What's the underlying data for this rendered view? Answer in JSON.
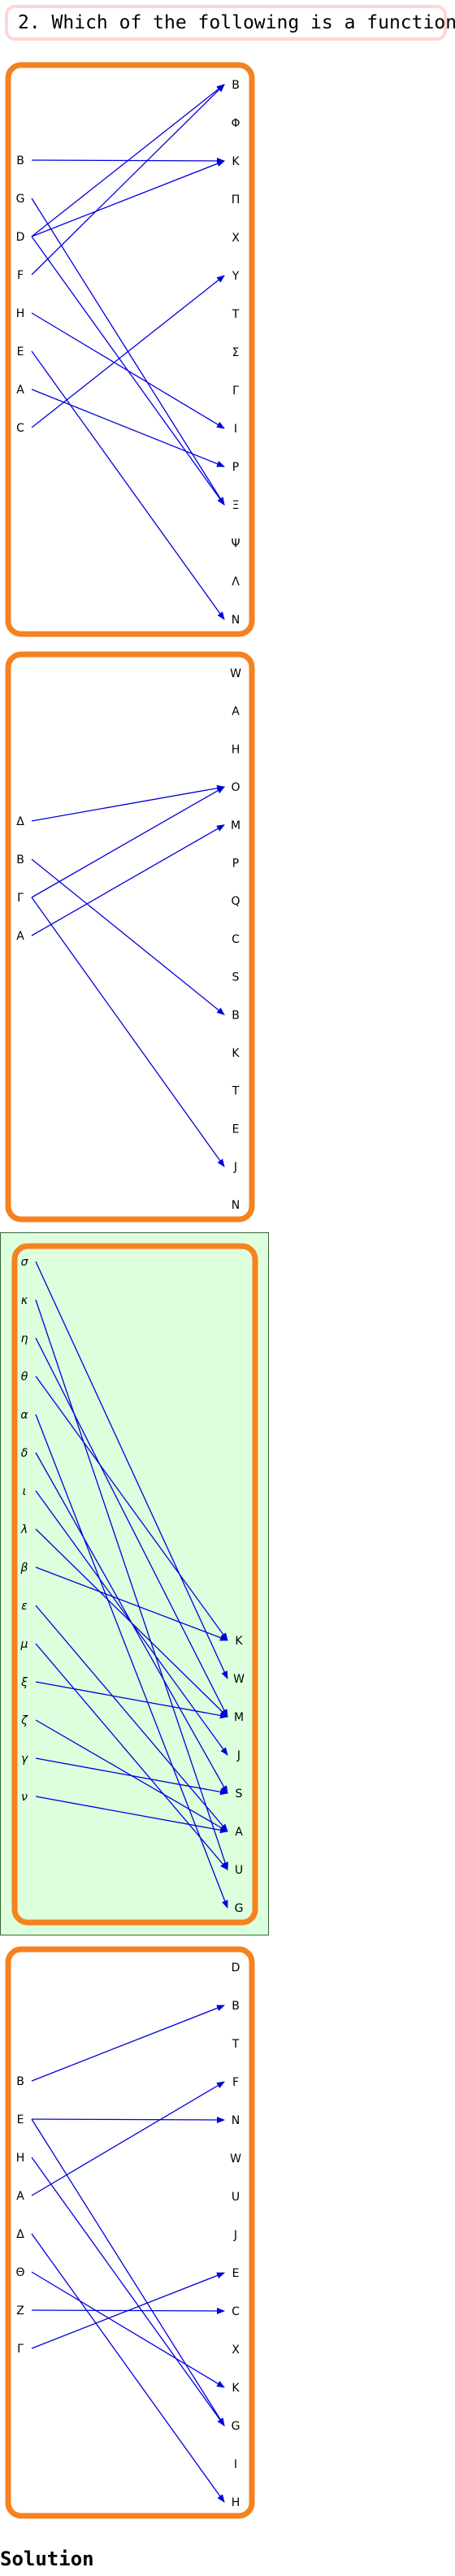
{
  "question": "2. Which of the following is a function:",
  "solution_label": "Solution",
  "colors": {
    "panel_border": "#f5821f",
    "arrow": "#0000dd",
    "highlight_fill": "#ddffdd",
    "highlight_border": "#336633",
    "question_border": "#ffd6d6"
  },
  "mappings": [
    {
      "id": "mapping-1",
      "highlighted": false,
      "domain": [
        "B",
        "G",
        "D",
        "F",
        "H",
        "E",
        "A",
        "C"
      ],
      "codomain": [
        "B",
        "Φ",
        "K",
        "Π",
        "X",
        "Y",
        "T",
        "Σ",
        "Γ",
        "I",
        "P",
        "Ξ",
        "Ψ",
        "Λ",
        "N"
      ],
      "arrows": [
        [
          0,
          2
        ],
        [
          1,
          11
        ],
        [
          2,
          0
        ],
        [
          2,
          2
        ],
        [
          2,
          11
        ],
        [
          3,
          0
        ],
        [
          4,
          9
        ],
        [
          5,
          14
        ],
        [
          6,
          10
        ],
        [
          7,
          5
        ]
      ]
    },
    {
      "id": "mapping-2",
      "highlighted": false,
      "domain": [
        "Δ",
        "B",
        "Γ",
        "A"
      ],
      "codomain": [
        "W",
        "A",
        "H",
        "O",
        "M",
        "P",
        "Q",
        "C",
        "S",
        "B",
        "K",
        "T",
        "E",
        "J",
        "N"
      ],
      "arrows": [
        [
          0,
          3
        ],
        [
          1,
          9
        ],
        [
          2,
          3
        ],
        [
          2,
          13
        ],
        [
          3,
          4
        ]
      ]
    },
    {
      "id": "mapping-3",
      "highlighted": true,
      "domain": [
        "σ",
        "κ",
        "η",
        "θ",
        "α",
        "δ",
        "ι",
        "λ",
        "β",
        "ε",
        "μ",
        "ξ",
        "ζ",
        "γ",
        "ν"
      ],
      "codomain": [
        "K",
        "W",
        "M",
        "J",
        "S",
        "A",
        "U",
        "G"
      ],
      "arrows": [
        [
          0,
          1
        ],
        [
          1,
          6
        ],
        [
          2,
          2
        ],
        [
          3,
          0
        ],
        [
          4,
          7
        ],
        [
          5,
          4
        ],
        [
          6,
          3
        ],
        [
          7,
          2
        ],
        [
          8,
          0
        ],
        [
          9,
          5
        ],
        [
          10,
          6
        ],
        [
          11,
          2
        ],
        [
          12,
          5
        ],
        [
          13,
          4
        ],
        [
          14,
          5
        ]
      ]
    },
    {
      "id": "mapping-4",
      "highlighted": false,
      "domain": [
        "B",
        "E",
        "H",
        "A",
        "Δ",
        "Θ",
        "Z",
        "Γ"
      ],
      "codomain": [
        "D",
        "B",
        "T",
        "F",
        "N",
        "W",
        "U",
        "J",
        "E",
        "C",
        "X",
        "K",
        "G",
        "I",
        "H"
      ],
      "arrows": [
        [
          0,
          1
        ],
        [
          1,
          4
        ],
        [
          1,
          12
        ],
        [
          2,
          12
        ],
        [
          3,
          3
        ],
        [
          4,
          14
        ],
        [
          5,
          11
        ],
        [
          6,
          9
        ],
        [
          7,
          8
        ]
      ]
    }
  ]
}
